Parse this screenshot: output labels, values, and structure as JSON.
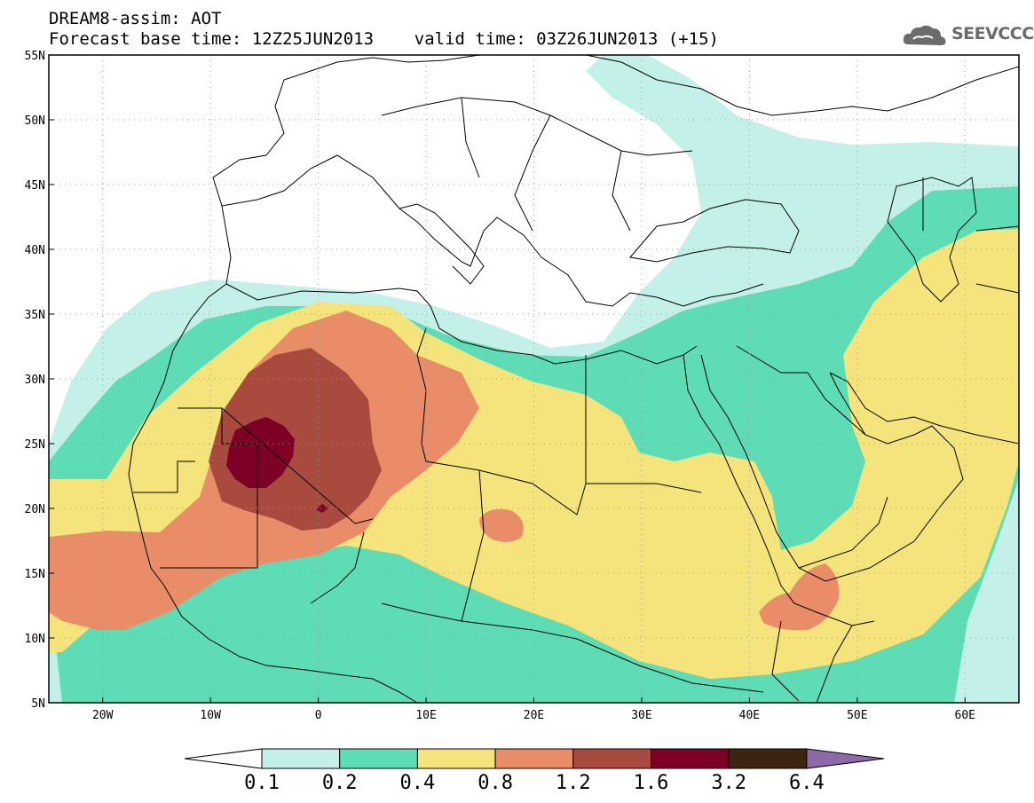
{
  "header": {
    "title_line1": "DREAM8-assim: AOT",
    "title_line2": "Forecast base time: 12Z25JUN2013    valid time: 03Z26JUN2013 (+15)"
  },
  "logo": {
    "text": "SEEVCCC",
    "icon": "cloud-icon",
    "color": "#6b6b6b"
  },
  "map": {
    "lon_range": [
      -25,
      65
    ],
    "lat_range": [
      5,
      55
    ],
    "grid": "dotted",
    "lon_ticks": [
      {
        "v": -20,
        "label": "20W"
      },
      {
        "v": -10,
        "label": "10W"
      },
      {
        "v": 0,
        "label": "0"
      },
      {
        "v": 10,
        "label": "10E"
      },
      {
        "v": 20,
        "label": "20E"
      },
      {
        "v": 30,
        "label": "30E"
      },
      {
        "v": 40,
        "label": "40E"
      },
      {
        "v": 50,
        "label": "50E"
      },
      {
        "v": 60,
        "label": "60E"
      }
    ],
    "lat_ticks": [
      {
        "v": 5,
        "label": "5N"
      },
      {
        "v": 10,
        "label": "10N"
      },
      {
        "v": 15,
        "label": "15N"
      },
      {
        "v": 20,
        "label": "20N"
      },
      {
        "v": 25,
        "label": "25N"
      },
      {
        "v": 30,
        "label": "30N"
      },
      {
        "v": 35,
        "label": "35N"
      },
      {
        "v": 40,
        "label": "40N"
      },
      {
        "v": 45,
        "label": "45N"
      },
      {
        "v": 50,
        "label": "50N"
      },
      {
        "v": 55,
        "label": "55N"
      }
    ]
  },
  "colorbar": {
    "levels": [
      "0.1",
      "0.2",
      "0.4",
      "0.8",
      "1.2",
      "1.6",
      "3.2",
      "6.4"
    ],
    "colors": [
      "#ffffff",
      "#c4f0ea",
      "#5edcb6",
      "#f5e37b",
      "#e98c68",
      "#a84a3e",
      "#7d0027",
      "#3c2411",
      "#8f68a8"
    ]
  }
}
